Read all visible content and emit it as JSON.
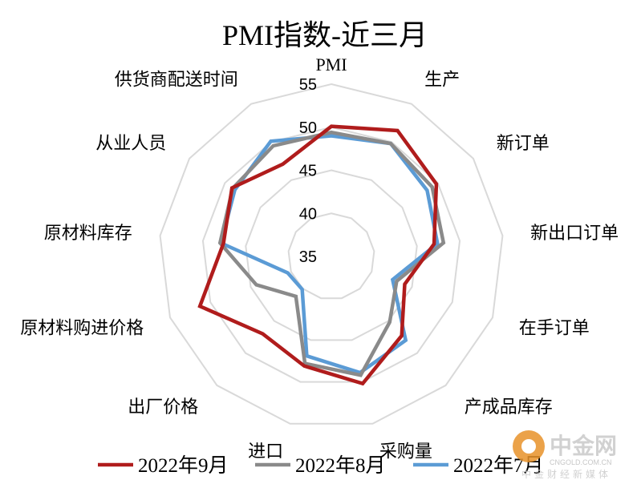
{
  "chart_data": {
    "type": "radar",
    "title": "PMI指数-近三月",
    "categories": [
      "PMI",
      "生产",
      "新订单",
      "新出口订单",
      "在手订单",
      "产成品库存",
      "采购量",
      "进口",
      "出厂价格",
      "原材料购进价格",
      "原材料库存",
      "从业人员",
      "供货商配送时间"
    ],
    "rlim": [
      35,
      55
    ],
    "ticks": [
      35,
      40,
      45,
      50,
      55
    ],
    "tick_labels": [
      "35",
      "40",
      "45",
      "50",
      "55"
    ],
    "grid": true,
    "legend_position": "bottom",
    "series": [
      {
        "name": "2022年9月",
        "color": "#b01c1c",
        "values": [
          50.1,
          51.5,
          49.8,
          47.0,
          44.1,
          47.3,
          50.2,
          48.1,
          47.0,
          51.3,
          47.6,
          49.0,
          47.1
        ]
      },
      {
        "name": "2022年8月",
        "color": "#8a8a8a",
        "values": [
          49.4,
          49.8,
          49.2,
          48.1,
          43.1,
          45.2,
          49.2,
          47.8,
          41.2,
          44.3,
          48.0,
          48.9,
          49.5
        ]
      },
      {
        "name": "2022年7月",
        "color": "#5b9bd5",
        "values": [
          49.0,
          49.8,
          48.5,
          47.4,
          42.6,
          48.0,
          48.9,
          46.9,
          40.1,
          40.4,
          47.9,
          48.6,
          50.1
        ]
      }
    ]
  },
  "watermark": {
    "logo_text": "中金网",
    "sub_text": "CNGOLD.COM.CN",
    "tagline": "中金财经新媒体"
  }
}
